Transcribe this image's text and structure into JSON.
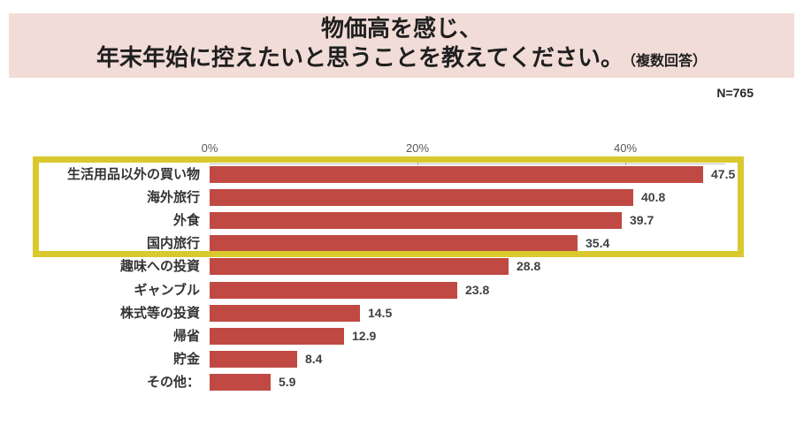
{
  "header": {
    "title_line1": "物価高を感じ、",
    "title_line2": "年末年始に控えたいと思うことを教えてください。",
    "title_note": "（複数回答）",
    "sample_size": "N=765"
  },
  "chart_data": {
    "type": "bar",
    "orientation": "horizontal",
    "title": "物価高を感じ、年末年始に控えたいと思うことを教えてください。（複数回答）",
    "categories": [
      "生活用品以外の買い物",
      "海外旅行",
      "外食",
      "国内旅行",
      "趣味への投資",
      "ギャンブル",
      "株式等の投資",
      "帰省",
      "貯金",
      "その他："
    ],
    "values": [
      47.5,
      40.8,
      39.7,
      35.4,
      28.8,
      23.8,
      14.5,
      12.9,
      8.4,
      5.9
    ],
    "unit": "%",
    "xlabel": "",
    "ylabel": "",
    "x_axis": {
      "tick_labels": [
        "0%",
        "20%",
        "40%"
      ],
      "tick_values": [
        0,
        20,
        40
      ],
      "range": [
        0,
        49.6
      ]
    },
    "grid": false,
    "legend": false,
    "value_labels_shown": true,
    "highlighted_categories": [
      "生活用品以外の買い物",
      "海外旅行",
      "外食",
      "国内旅行"
    ],
    "colors": {
      "bar": "#c04a43",
      "highlight_border": "#d9c92f",
      "title_background": "#f2dcd7",
      "axis_line": "#bfbfbf",
      "category_label": "#333333",
      "value_label": "#404040"
    }
  }
}
